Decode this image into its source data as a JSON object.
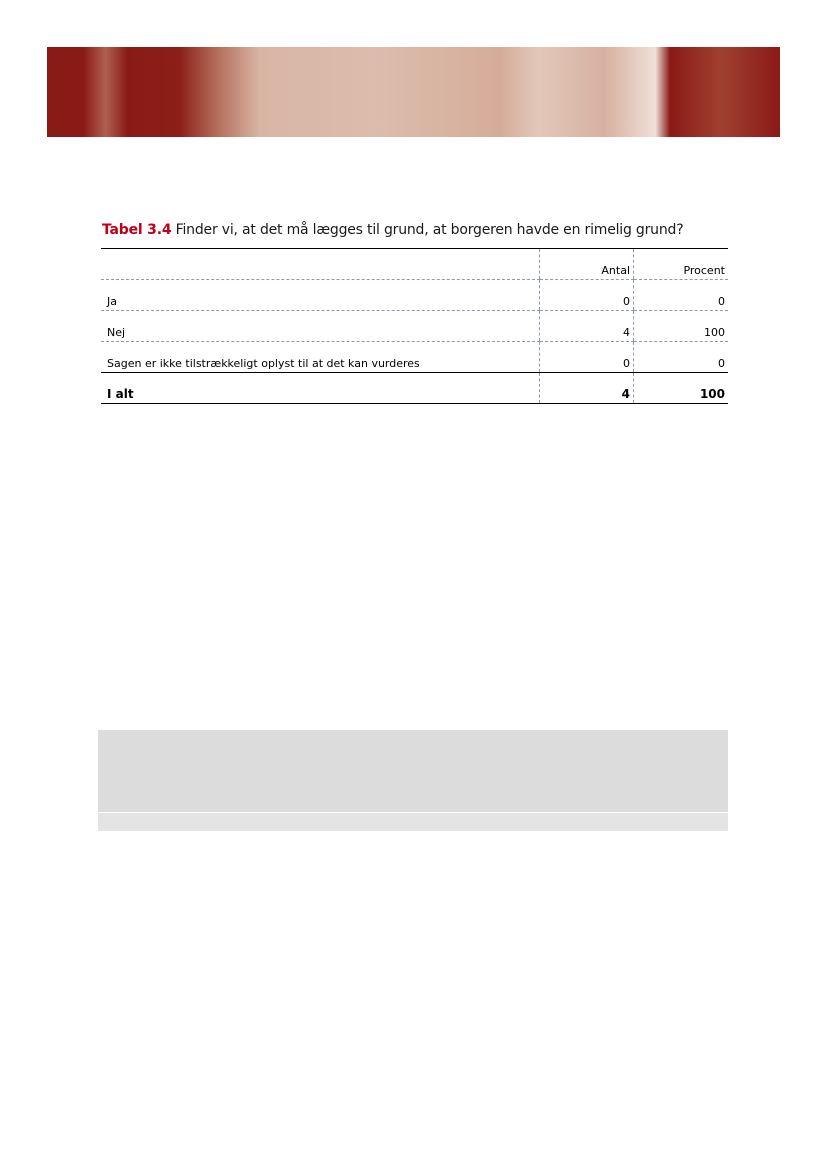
{
  "caption": {
    "label": "Tabel 3.4",
    "text": "Finder vi, at det må lægges til grund, at borgeren havde en rimelig grund?"
  },
  "table": {
    "headers": [
      "",
      "Antal",
      "Procent"
    ],
    "rows": [
      [
        "Ja",
        "0",
        "0"
      ],
      [
        "Nej",
        "4",
        "100"
      ],
      [
        "Sagen er ikke tilstrækkeligt oplyst til at det kan vurderes",
        "0",
        "0"
      ]
    ],
    "total": [
      "I alt",
      "4",
      "100"
    ]
  },
  "colors": {
    "accent": "#c00018",
    "banner": "#8a1a16"
  }
}
